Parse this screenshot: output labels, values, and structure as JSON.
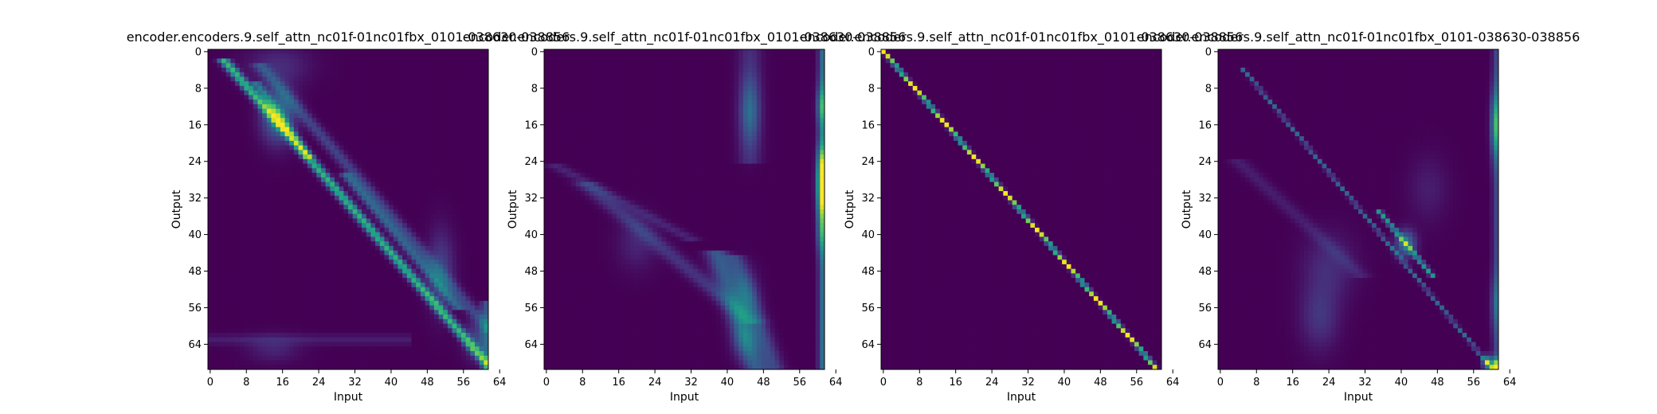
{
  "colormap": {
    "name": "viridis",
    "stops": [
      "#440154",
      "#482475",
      "#414487",
      "#355f8d",
      "#2a788e",
      "#21918c",
      "#22a884",
      "#44bf70",
      "#7ad151",
      "#bddf26",
      "#fde725"
    ]
  },
  "chart_data": [
    {
      "type": "heatmap",
      "title": "encoder.encoders.9.self_attn_nc01f-01nc01fbx_0101-038630-038856",
      "xlabel": "Input",
      "ylabel": "Output",
      "n_rows": 70,
      "n_cols": 62,
      "xticks": [
        0,
        8,
        16,
        24,
        32,
        40,
        48,
        56,
        64
      ],
      "yticks": [
        0,
        8,
        16,
        24,
        32,
        40,
        48,
        56,
        64
      ],
      "pattern": "strong band along the main diagonal brightest near rows 8-18, with a secondary parallel band just above it, faint vertical streak near the last input columns",
      "features": [
        {
          "kind": "band",
          "r0": 3,
          "c0": 4,
          "r1": 68,
          "c1": 61,
          "width": 0.9,
          "value": 0.65
        },
        {
          "kind": "band",
          "r0": 8,
          "c0": 11,
          "r1": 22,
          "c1": 21,
          "width": 0.8,
          "value": 0.35
        },
        {
          "kind": "band",
          "r0": 28,
          "c0": 31,
          "r1": 55,
          "c1": 54,
          "width": 1.0,
          "value": 0.3
        },
        {
          "kind": "band",
          "r0": 4,
          "c0": 12,
          "r1": 60,
          "c1": 61,
          "width": 1.2,
          "value": 0.2
        },
        {
          "kind": "blob",
          "r": 14,
          "c": 15,
          "rr": 4,
          "rc": 2.5,
          "value": 0.4
        },
        {
          "kind": "blob",
          "r": 48,
          "c": 51,
          "rr": 6,
          "rc": 2,
          "value": 0.2
        },
        {
          "kind": "blob",
          "r": 63,
          "c": 59,
          "rr": 3,
          "rc": 2,
          "value": 0.2
        },
        {
          "kind": "blob",
          "r": 3,
          "c": 15,
          "rr": 3,
          "rc": 5,
          "value": 0.12
        },
        {
          "kind": "vstrip",
          "c": 61,
          "r0": 55,
          "r1": 70,
          "width": 0.8,
          "value": 0.25
        },
        {
          "kind": "hstrip",
          "r": 63,
          "c0": 0,
          "c1": 45,
          "width": 0.8,
          "value": 0.08
        },
        {
          "kind": "blob",
          "r": 65,
          "c": 14,
          "rr": 2,
          "rc": 4,
          "value": 0.1
        }
      ]
    },
    {
      "type": "heatmap",
      "title": "encoder.encoders.9.self_attn_nc01f-01nc01fbx_0101-038630-038856",
      "xlabel": "Input",
      "ylabel": "Output",
      "n_rows": 70,
      "n_cols": 62,
      "xticks": [
        0,
        8,
        16,
        24,
        32,
        40,
        48,
        56,
        64
      ],
      "yticks": [
        0,
        8,
        16,
        24,
        32,
        40,
        48,
        56,
        64
      ],
      "pattern": "bright vertical strip at the last input columns (peaks near rows 24-34), diffuse streaks near inputs 44-52 and faint diagonal bands in the lower-left; upper-right triangle near zero",
      "features": [
        {
          "kind": "vstrip",
          "c": 61,
          "r0": 0,
          "r1": 70,
          "width": 0.6,
          "value": 0.35
        },
        {
          "kind": "blob",
          "r": 26,
          "c": 61,
          "rr": 4,
          "rc": 0.8,
          "value": 0.6
        },
        {
          "kind": "blob",
          "r": 32,
          "c": 61,
          "rr": 4,
          "rc": 0.8,
          "value": 0.55
        },
        {
          "kind": "blob",
          "r": 12,
          "c": 61,
          "rr": 3,
          "rc": 0.8,
          "value": 0.35
        },
        {
          "kind": "blob",
          "r": 40,
          "c": 61,
          "rr": 3,
          "rc": 0.8,
          "value": 0.25
        },
        {
          "kind": "vstrip",
          "c": 45,
          "r0": 0,
          "r1": 25,
          "width": 1.8,
          "value": 0.12
        },
        {
          "kind": "blob",
          "r": 13,
          "c": 45,
          "rr": 5,
          "rc": 1.5,
          "value": 0.25
        },
        {
          "kind": "band",
          "r0": 30,
          "c0": 10,
          "r1": 58,
          "c1": 44,
          "width": 1.8,
          "value": 0.15
        },
        {
          "kind": "band",
          "r0": 45,
          "c0": 38,
          "r1": 68,
          "c1": 46,
          "width": 1.8,
          "value": 0.28
        },
        {
          "kind": "band",
          "r0": 46,
          "c0": 42,
          "r1": 68,
          "c1": 50,
          "width": 1.5,
          "value": 0.2
        },
        {
          "kind": "blob",
          "r": 54,
          "c": 44,
          "rr": 4,
          "rc": 2,
          "value": 0.18
        },
        {
          "kind": "blob",
          "r": 63,
          "c": 44,
          "rr": 3,
          "rc": 2,
          "value": 0.18
        },
        {
          "kind": "band",
          "r0": 26,
          "c0": 4,
          "r1": 40,
          "c1": 30,
          "width": 1.5,
          "value": 0.1
        },
        {
          "kind": "blob",
          "r": 42,
          "c": 20,
          "rr": 4,
          "rc": 3,
          "value": 0.1
        }
      ]
    },
    {
      "type": "heatmap",
      "title": "encoder.encoders.9.self_attn_nc01f-01nc01fbx_0101-038630-038856",
      "xlabel": "Input",
      "ylabel": "Output",
      "n_rows": 70,
      "n_cols": 62,
      "xticks": [
        0,
        8,
        16,
        24,
        32,
        40,
        48,
        56,
        64
      ],
      "yticks": [
        0,
        8,
        16,
        24,
        32,
        40,
        48,
        56,
        64
      ],
      "pattern": "near-identity: a single bright yellow cell on the main diagonal in every row, everything else near zero",
      "features": [
        {
          "kind": "band",
          "r0": 0,
          "c0": 0,
          "r1": 70,
          "c1": 61,
          "width": 0.35,
          "value": 1.0
        }
      ]
    },
    {
      "type": "heatmap",
      "title": "encoder.encoders.9.self_attn_nc01f-01nc01fbx_0101-038630-038856",
      "xlabel": "Input",
      "ylabel": "Output",
      "n_rows": 70,
      "n_cols": 62,
      "xticks": [
        0,
        8,
        16,
        24,
        32,
        40,
        48,
        56,
        64
      ],
      "yticks": [
        0,
        8,
        16,
        24,
        32,
        40,
        48,
        56,
        64
      ],
      "pattern": "thin diagonal line strongest around rows 38-50, bright cells in the last columns near rows 10-20 and at the bottom-right corner, diffuse blobs near inputs 18-28 in the lower rows",
      "features": [
        {
          "kind": "band",
          "r0": 5,
          "c0": 6,
          "r1": 68,
          "c1": 59,
          "width": 0.35,
          "value": 0.35
        },
        {
          "kind": "band",
          "r0": 36,
          "c0": 36,
          "r1": 48,
          "c1": 46,
          "width": 0.45,
          "value": 0.55
        },
        {
          "kind": "blob",
          "r": 42,
          "c": 41,
          "rr": 2,
          "rc": 1.5,
          "value": 0.4
        },
        {
          "kind": "vstrip",
          "c": 61,
          "r0": 0,
          "r1": 70,
          "width": 0.6,
          "value": 0.2
        },
        {
          "kind": "blob",
          "r": 16,
          "c": 61,
          "rr": 5,
          "rc": 0.8,
          "value": 0.5
        },
        {
          "kind": "blob",
          "r": 69,
          "c": 61,
          "rr": 1.2,
          "rc": 0.8,
          "value": 0.9
        },
        {
          "kind": "blob",
          "r": 68,
          "c": 59,
          "rr": 1,
          "rc": 0.7,
          "value": 0.6
        },
        {
          "kind": "blob",
          "r": 58,
          "c": 22,
          "rr": 5,
          "rc": 3,
          "value": 0.15
        },
        {
          "kind": "blob",
          "r": 47,
          "c": 24,
          "rr": 5,
          "rc": 4,
          "value": 0.12
        },
        {
          "kind": "band",
          "r0": 25,
          "c0": 5,
          "r1": 48,
          "c1": 30,
          "width": 1.5,
          "value": 0.08
        },
        {
          "kind": "blob",
          "r": 30,
          "c": 46,
          "rr": 5,
          "rc": 3,
          "value": 0.08
        },
        {
          "kind": "blob",
          "r": 55,
          "c": 61,
          "rr": 4,
          "rc": 0.8,
          "value": 0.2
        }
      ]
    }
  ]
}
